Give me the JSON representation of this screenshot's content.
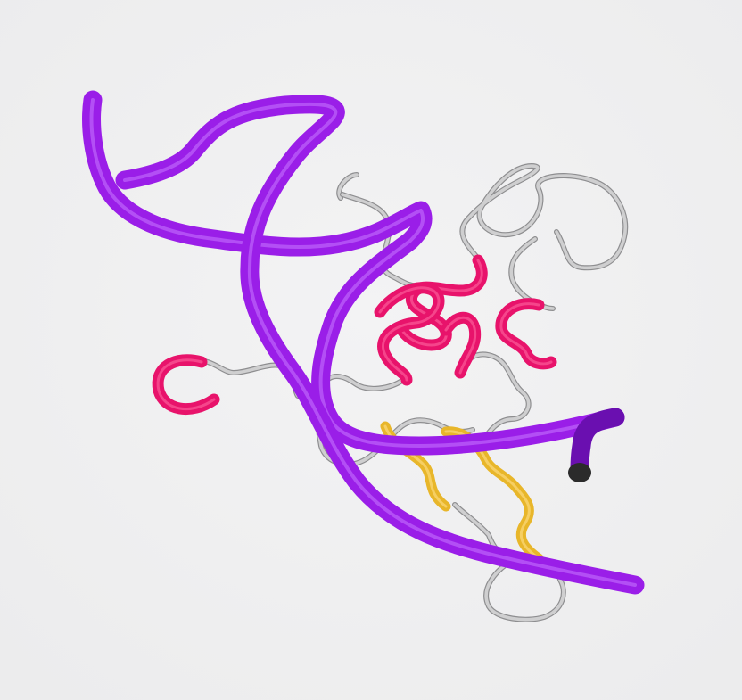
{
  "scene": {
    "subject": "molecule-cartoon-render",
    "colors": {
      "background": "#f0f0f1",
      "nucleic_acid": "#9a1ee8",
      "nucleic_acid_highlight": "#c978ff",
      "nucleic_acid_shadow": "#6a0fb0",
      "helix": "#e8136b",
      "helix_highlight": "#ff6fa6",
      "strand": "#e8b62a",
      "strand_highlight": "#ffe08a",
      "loop": "#cfcfd0",
      "loop_outline": "#8e8e90",
      "tube_end_cap": "#2b2b2b"
    }
  }
}
